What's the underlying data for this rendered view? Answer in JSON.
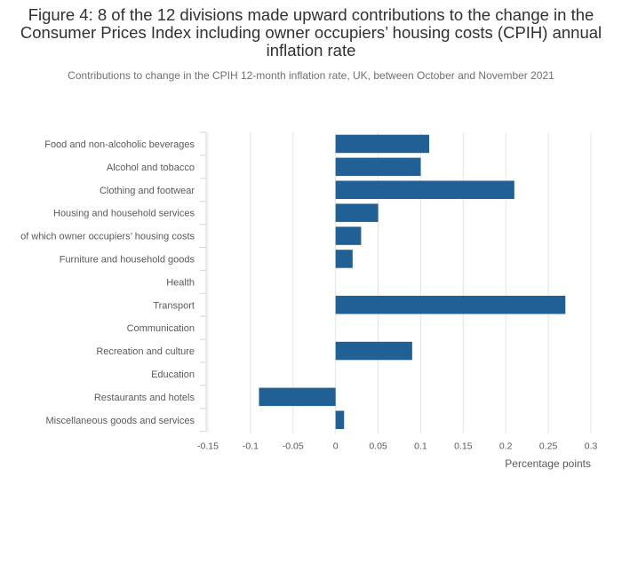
{
  "figure": {
    "title": "Figure 4: 8 of the 12 divisions made upward contributions to the change in the Consumer Prices Index including owner occupiers’ housing costs (CPIH) annual inflation rate",
    "subtitle": "Contributions to change in the CPIH 12-month inflation rate, UK, between October and November 2021"
  },
  "chart_data": {
    "type": "bar",
    "orientation": "horizontal",
    "title": "Figure 4: 8 of the 12 divisions made upward contributions to the change in the Consumer Prices Index including owner occupiers’ housing costs (CPIH) annual inflation rate",
    "subtitle": "Contributions to change in the CPIH 12-month inflation rate, UK, between October and November 2021",
    "xlabel": "Percentage points",
    "ylabel": "",
    "categories": [
      "Food and non-alcoholic beverages",
      "Alcohol and tobacco",
      "Clothing and footwear",
      "Housing and household services",
      "of which owner occupiers’ housing costs",
      "Furniture and household goods",
      "Health",
      "Transport",
      "Communication",
      "Recreation and culture",
      "Education",
      "Restaurants and hotels",
      "Miscellaneous goods and services"
    ],
    "values": [
      0.11,
      0.1,
      0.21,
      0.05,
      0.03,
      0.02,
      0.0,
      0.27,
      0.0,
      0.09,
      0.0,
      -0.09,
      0.01
    ],
    "xlim": [
      -0.15,
      0.3
    ],
    "xticks": [
      "-0.15",
      "-0.1",
      "-0.05",
      "0",
      "0.05",
      "0.1",
      "0.15",
      "0.2",
      "0.25",
      "0.3"
    ],
    "grid": true,
    "legend": "none",
    "bar_color": "#206095",
    "grid_color": "#e4e4e4"
  }
}
